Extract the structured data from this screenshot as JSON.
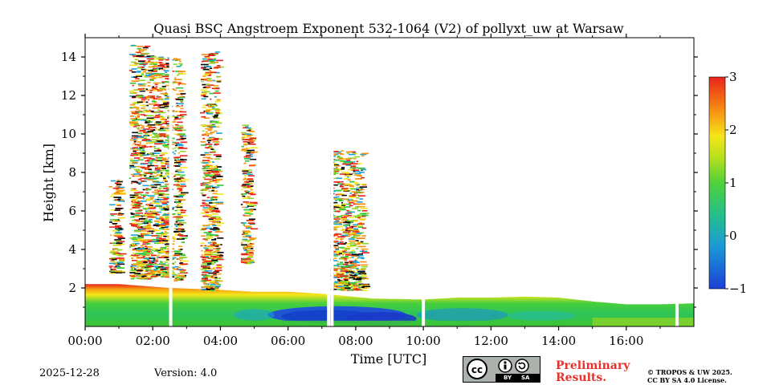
{
  "chart_data": {
    "type": "heatmap",
    "title": "Quasi BSC Angstroem Exponent 532-1064 (V2) of pollyxt_uw at Warsaw",
    "xlabel": "Time [UTC]",
    "ylabel": "Height [km]",
    "xlim_hours": [
      0,
      18
    ],
    "ylim_km": [
      0,
      15
    ],
    "x_ticks": [
      0,
      2,
      4,
      6,
      8,
      10,
      12,
      14,
      16
    ],
    "x_tick_labels": [
      "00:00",
      "02:00",
      "04:00",
      "06:00",
      "08:00",
      "10:00",
      "12:00",
      "14:00",
      "16:00"
    ],
    "y_ticks": [
      2,
      4,
      6,
      8,
      10,
      12,
      14
    ],
    "y_tick_labels": [
      "2",
      "4",
      "6",
      "8",
      "10",
      "12",
      "14"
    ],
    "colorbar": {
      "range": [
        -1,
        3
      ],
      "ticks": [
        -1,
        0,
        1,
        2,
        3
      ],
      "tick_labels": [
        "−1",
        "0",
        "1",
        "2",
        "3"
      ]
    },
    "boundary_layer_top_km": [
      {
        "t": 0.0,
        "h": 2.2
      },
      {
        "t": 1.0,
        "h": 2.2
      },
      {
        "t": 2.5,
        "h": 2.0
      },
      {
        "t": 4.0,
        "h": 1.9
      },
      {
        "t": 5.0,
        "h": 1.8
      },
      {
        "t": 6.0,
        "h": 1.8
      },
      {
        "t": 7.0,
        "h": 1.7
      },
      {
        "t": 8.5,
        "h": 1.45
      },
      {
        "t": 10.0,
        "h": 1.4
      },
      {
        "t": 11.0,
        "h": 1.5
      },
      {
        "t": 12.0,
        "h": 1.5
      },
      {
        "t": 13.0,
        "h": 1.55
      },
      {
        "t": 14.0,
        "h": 1.5
      },
      {
        "t": 15.0,
        "h": 1.3
      },
      {
        "t": 16.0,
        "h": 1.15
      },
      {
        "t": 17.0,
        "h": 1.15
      },
      {
        "t": 18.0,
        "h": 1.2
      }
    ],
    "cloud_columns": [
      {
        "t_start": 0.7,
        "t_end": 1.0,
        "h_bottom": 2.8,
        "h_top": 7.8
      },
      {
        "t_start": 1.3,
        "t_end": 1.8,
        "h_bottom": 2.5,
        "h_top": 14.7
      },
      {
        "t_start": 1.8,
        "t_end": 2.5,
        "h_bottom": 2.6,
        "h_top": 14.2
      },
      {
        "t_start": 2.6,
        "t_end": 2.85,
        "h_bottom": 2.4,
        "h_top": 14.0
      },
      {
        "t_start": 3.4,
        "t_end": 3.9,
        "h_bottom": 1.9,
        "h_top": 14.3
      },
      {
        "t_start": 4.6,
        "t_end": 4.9,
        "h_bottom": 3.3,
        "h_top": 10.6
      },
      {
        "t_start": 7.2,
        "t_end": 8.2,
        "h_bottom": 1.9,
        "h_top": 9.2
      }
    ],
    "gaps_hours": [
      2.53,
      7.2,
      7.3,
      10.0,
      17.5
    ]
  },
  "footer": {
    "date": "2025-12-28",
    "version": "Version: 4.0",
    "preliminary_line1": "Preliminary",
    "preliminary_line2": "Results.",
    "license_line1": "© TROPOS & UW 2025.",
    "license_line2": "CC BY SA 4.0 License.",
    "cc_by": "BY",
    "cc_sa": "SA"
  },
  "colors": {
    "blue": "#1d4fd6",
    "cyan": "#1aa3d6",
    "green": "#2fc43a",
    "yellow": "#f5e61a",
    "orange": "#f78a10",
    "red": "#e8231b"
  }
}
